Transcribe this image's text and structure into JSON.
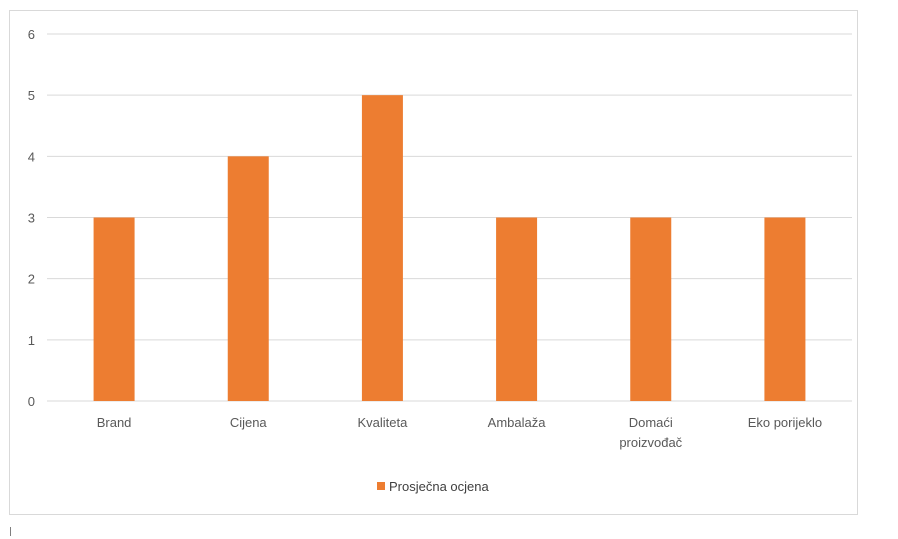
{
  "chart_data": {
    "type": "bar",
    "categories": [
      [
        "Brand"
      ],
      [
        "Cijena"
      ],
      [
        "Kvaliteta"
      ],
      [
        "Ambalaža"
      ],
      [
        "Domaći",
        "proizvođač"
      ],
      [
        "Eko porijeklo"
      ]
    ],
    "series": [
      {
        "name": "Prosječna ocjena",
        "values": [
          3,
          4,
          5,
          3,
          3,
          3
        ],
        "color": "#ed7d31"
      }
    ],
    "ylim": [
      0,
      6
    ],
    "yticks": [
      "0",
      "1",
      "2",
      "3",
      "4",
      "5",
      "6"
    ],
    "grid": true,
    "legend_position": "bottom",
    "title": "",
    "xlabel": "",
    "ylabel": ""
  }
}
